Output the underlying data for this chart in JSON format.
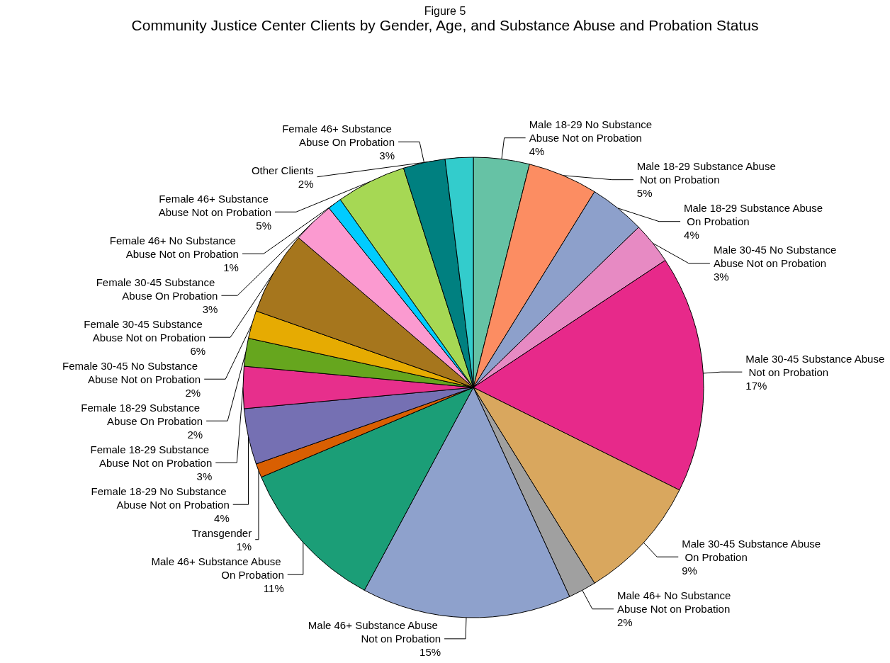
{
  "chart_data": {
    "type": "pie",
    "title": "Figure 5",
    "subtitle": "Community Justice Center Clients by Gender, Age, and Substance Abuse and Probation Status",
    "categories": [
      "Male 18-29 No Substance Abuse Not on Probation",
      "Male 18-29 Substance Abuse Not on Probation",
      "Male 18-29 Substance Abuse On Probation",
      "Male 30-45 No Substance Abuse Not on Probation",
      "Male 30-45 Substance Abuse Not on Probation",
      "Male 30-45 Substance Abuse On Probation",
      "Male 46+ No Substance Abuse Not on Probation",
      "Male 46+ Substance Abuse Not on Probation",
      "Male 46+ Substance Abuse On Probation",
      "Transgender",
      "Female 18-29 No Substance Abuse Not on Probation",
      "Female 18-29 Substance Abuse Not on Probation",
      "Female 18-29 Substance Abuse On Probation",
      "Female 30-45 No Substance Abuse Not on Probation",
      "Female 30-45 Substance Abuse Not on Probation",
      "Female 30-45 Substance Abuse On Probation",
      "Female 46+ No Substance Abuse Not on Probation",
      "Female 46+ Substance Abuse Not on Probation",
      "Female 46+ Substance Abuse On Probation",
      "Other Clients"
    ],
    "values": [
      4,
      5,
      4,
      3,
      17,
      9,
      2,
      15,
      11,
      1,
      4,
      3,
      2,
      2,
      6,
      3,
      1,
      5,
      3,
      2
    ],
    "value_labels": [
      "4%",
      "5%",
      "4%",
      "3%",
      "17%",
      "9%",
      "2%",
      "15%",
      "11%",
      "1%",
      "4%",
      "3%",
      "2%",
      "2%",
      "6%",
      "3%",
      "1%",
      "5%",
      "3%",
      "2%"
    ],
    "colors": [
      "#66c2a5",
      "#fc8d62",
      "#8da0cb",
      "#e78ac3",
      "#e7298a",
      "#d9a75e",
      "#a0a0a0",
      "#8ea1cc",
      "#1b9e77",
      "#d95f02",
      "#7570b3",
      "#e72f8c",
      "#66a61e",
      "#e6ab02",
      "#a6761d",
      "#fb9ad0",
      "#00ccff",
      "#a6d854",
      "#008080",
      "#33cccc"
    ],
    "legend": false
  }
}
